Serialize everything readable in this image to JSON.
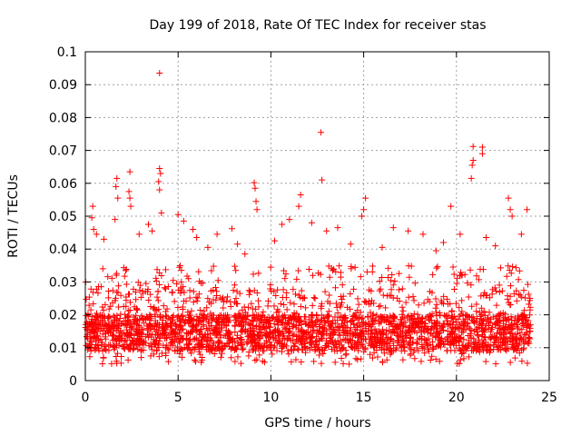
{
  "chart_data": {
    "type": "scatter",
    "title": "Day 199 of 2018, Rate Of TEC Index for receiver stas",
    "xlabel": "GPS time / hours",
    "ylabel": "ROTI / TECUs",
    "xlim": [
      0,
      25
    ],
    "ylim": [
      0,
      0.1
    ],
    "xticks": [
      0,
      5,
      10,
      15,
      20,
      25
    ],
    "yticks": [
      0,
      0.01,
      0.02,
      0.03,
      0.04,
      0.05,
      0.06,
      0.07,
      0.08,
      0.09,
      0.1
    ],
    "xtick_labels": [
      "0",
      "5",
      "10",
      "15",
      "20",
      "25"
    ],
    "ytick_labels": [
      "0",
      "0.01",
      "0.02",
      "0.03",
      "0.04",
      "0.05",
      "0.06",
      "0.07",
      "0.08",
      "0.09",
      "0.1"
    ],
    "grid": true,
    "marker": "+",
    "color": "#ff0000",
    "baseline_band": {
      "x_range": [
        0,
        24
      ],
      "y_low": 0.005,
      "y_high": 0.028,
      "note": "dense cloud of several thousand points"
    },
    "series": [
      {
        "name": "ROTI",
        "points": [
          [
            4.0,
            0.0935
          ],
          [
            12.7,
            0.0755
          ],
          [
            12.75,
            0.061
          ],
          [
            20.9,
            0.0712
          ],
          [
            21.4,
            0.071
          ],
          [
            21.4,
            0.069
          ],
          [
            20.9,
            0.067
          ],
          [
            20.85,
            0.0655
          ],
          [
            20.8,
            0.0615
          ],
          [
            4.0,
            0.0645
          ],
          [
            4.05,
            0.063
          ],
          [
            3.95,
            0.0605
          ],
          [
            4.0,
            0.058
          ],
          [
            4.1,
            0.051
          ],
          [
            2.4,
            0.0635
          ],
          [
            2.35,
            0.0575
          ],
          [
            2.4,
            0.0555
          ],
          [
            2.45,
            0.053
          ],
          [
            1.7,
            0.0615
          ],
          [
            1.65,
            0.059
          ],
          [
            1.75,
            0.0555
          ],
          [
            1.6,
            0.049
          ],
          [
            0.4,
            0.053
          ],
          [
            0.35,
            0.0495
          ],
          [
            0.45,
            0.046
          ],
          [
            0.6,
            0.0445
          ],
          [
            9.1,
            0.0602
          ],
          [
            9.15,
            0.0585
          ],
          [
            9.2,
            0.0545
          ],
          [
            9.25,
            0.052
          ],
          [
            11.6,
            0.0565
          ],
          [
            11.5,
            0.053
          ],
          [
            11.0,
            0.049
          ],
          [
            10.6,
            0.0475
          ],
          [
            15.1,
            0.0555
          ],
          [
            15.0,
            0.052
          ],
          [
            14.9,
            0.05
          ],
          [
            19.7,
            0.053
          ],
          [
            22.8,
            0.0555
          ],
          [
            22.9,
            0.052
          ],
          [
            23.0,
            0.05
          ],
          [
            23.8,
            0.052
          ],
          [
            5.0,
            0.0505
          ],
          [
            5.3,
            0.0485
          ],
          [
            5.8,
            0.046
          ],
          [
            6.0,
            0.0435
          ],
          [
            3.4,
            0.0475
          ],
          [
            3.6,
            0.0455
          ],
          [
            7.9,
            0.0462
          ],
          [
            8.2,
            0.0415
          ],
          [
            12.2,
            0.048
          ],
          [
            13.6,
            0.0465
          ],
          [
            13.0,
            0.0455
          ],
          [
            16.6,
            0.0465
          ],
          [
            17.4,
            0.0455
          ],
          [
            18.2,
            0.0445
          ],
          [
            19.3,
            0.042
          ],
          [
            20.2,
            0.0445
          ],
          [
            21.6,
            0.0435
          ],
          [
            22.1,
            0.041
          ],
          [
            2.9,
            0.0445
          ],
          [
            1.0,
            0.043
          ],
          [
            7.1,
            0.0445
          ],
          [
            10.2,
            0.0425
          ],
          [
            14.3,
            0.0415
          ],
          [
            16.0,
            0.0405
          ],
          [
            18.9,
            0.0395
          ],
          [
            23.5,
            0.0445
          ],
          [
            6.6,
            0.0405
          ],
          [
            8.6,
            0.0385
          ]
        ]
      }
    ]
  }
}
